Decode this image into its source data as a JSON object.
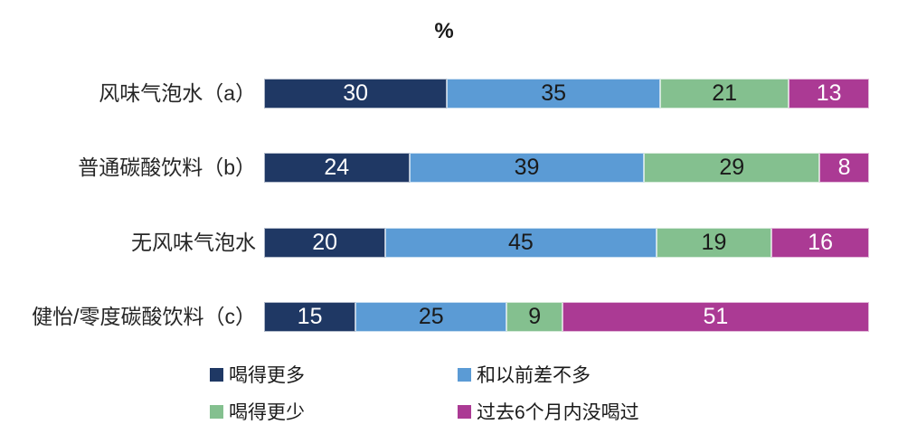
{
  "chart_data": {
    "type": "bar",
    "orientation": "horizontal",
    "stacked": true,
    "title": "%",
    "categories": [
      "风味气泡水（a）",
      "普通碳酸饮料（b）",
      "无风味气泡水",
      "健怡/零度碳酸饮料（c）"
    ],
    "series": [
      {
        "name": "喝得更多",
        "color": "#1F3864",
        "label_color": "#FFFFFF",
        "values": [
          30,
          24,
          20,
          15
        ]
      },
      {
        "name": "和以前差不多",
        "color": "#5B9BD5",
        "label_color": "#1A1A1A",
        "values": [
          35,
          39,
          45,
          25
        ]
      },
      {
        "name": "喝得更少",
        "color": "#84C08F",
        "label_color": "#1A1A1A",
        "values": [
          21,
          29,
          19,
          9
        ]
      },
      {
        "name": "过去6个月内没喝过",
        "color": "#AB3A94",
        "label_color": "#FFFFFF",
        "values": [
          13,
          8,
          16,
          51
        ]
      }
    ],
    "xlim": [
      0,
      100
    ],
    "grid": false,
    "data_labels": "inside-center",
    "legend_position": "bottom",
    "legend_columns": 2,
    "background": "#FFFFFF"
  }
}
